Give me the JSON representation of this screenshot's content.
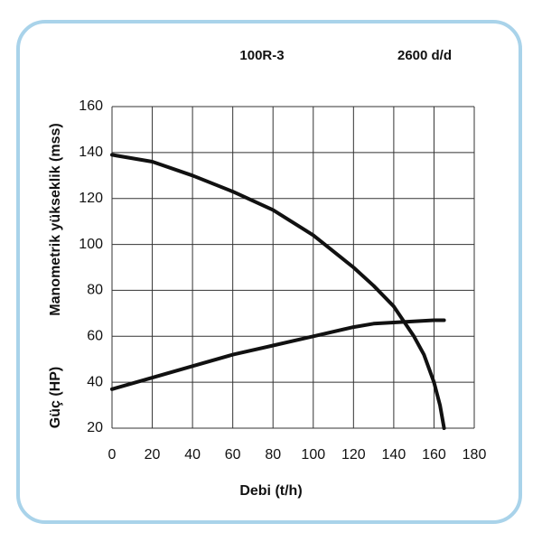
{
  "chart_data": {
    "type": "line",
    "titles": [
      "100R-3",
      "2600 d/d"
    ],
    "xlabel": "Debi (t/h)",
    "ylabel": "Manometrik yükseklik (mss)",
    "ylabel2": "Güç (HP)",
    "xlim": [
      0,
      180
    ],
    "xticks": [
      0,
      20,
      40,
      60,
      80,
      100,
      120,
      140,
      160,
      180
    ],
    "ylim": [
      20,
      160
    ],
    "yticks": [
      20,
      40,
      60,
      80,
      100,
      120,
      140,
      160
    ],
    "grid": true,
    "series": [
      {
        "color": "#111111",
        "x": [
          0,
          20,
          40,
          60,
          80,
          100,
          120,
          130,
          140,
          150,
          155,
          160,
          163,
          165
        ],
        "values": [
          139,
          136,
          130,
          123,
          115,
          104,
          90,
          82,
          73,
          60,
          52,
          40,
          30,
          20
        ]
      },
      {
        "color": "#111111",
        "x": [
          0,
          20,
          40,
          60,
          80,
          100,
          120,
          130,
          140,
          160,
          165
        ],
        "values": [
          37,
          42,
          47,
          52,
          56,
          60,
          64,
          65.5,
          66,
          67,
          67
        ]
      }
    ]
  }
}
